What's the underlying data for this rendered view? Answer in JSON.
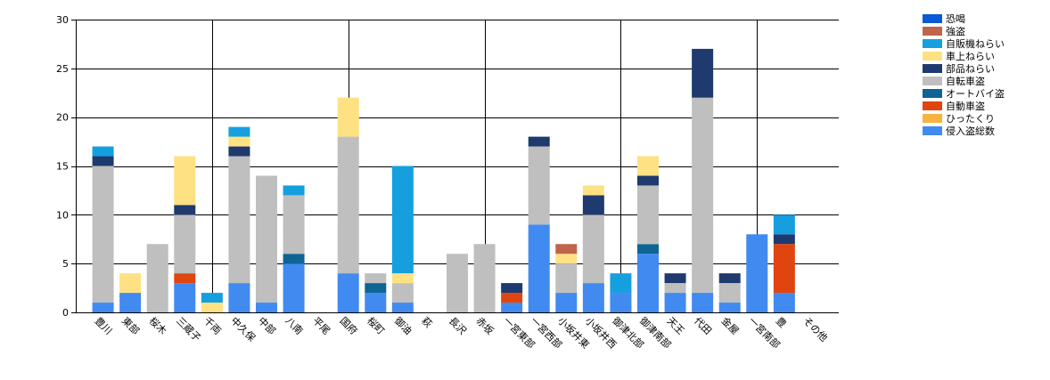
{
  "chart_data": {
    "type": "bar",
    "stacked": true,
    "title": "",
    "xlabel": "",
    "ylabel": "",
    "ylim": [
      0,
      30
    ],
    "yticks": [
      0,
      5,
      10,
      15,
      20,
      25,
      30
    ],
    "grid": true,
    "legend_position": "top-right",
    "categories": [
      "豊川",
      "東部",
      "桜木",
      "三蔵子",
      "千両",
      "中久保",
      "中部",
      "八南",
      "平尾",
      "国府",
      "桜町",
      "御油",
      "萩",
      "長沢",
      "赤坂",
      "一宮東部",
      "一宮西部",
      "小坂井東",
      "小坂井西",
      "御津北部",
      "御津南部",
      "天王",
      "代田",
      "金屋",
      "一宮南部",
      "豊",
      "その他"
    ],
    "series": [
      {
        "name": "恐喝",
        "color": "#0a5ad6",
        "values": [
          0,
          0,
          0,
          0,
          0,
          0,
          0,
          0,
          0,
          0,
          0,
          0,
          0,
          0,
          0,
          0,
          0,
          0,
          0,
          0,
          0,
          0,
          0,
          0,
          0,
          0,
          0
        ]
      },
      {
        "name": "強盗",
        "color": "#c0644b",
        "values": [
          0,
          0,
          0,
          0,
          0,
          0,
          0,
          0,
          0,
          0,
          0,
          0,
          0,
          0,
          0,
          0,
          0,
          1,
          0,
          0,
          0,
          0,
          0,
          0,
          0,
          0,
          0
        ]
      },
      {
        "name": "自販機ねらい",
        "color": "#159fdf",
        "values": [
          1,
          0,
          0,
          0,
          1,
          1,
          0,
          1,
          0,
          0,
          0,
          11,
          0,
          0,
          0,
          0,
          0,
          0,
          0,
          2,
          0,
          0,
          0,
          0,
          0,
          2,
          0
        ]
      },
      {
        "name": "車上ねらい",
        "color": "#fee182",
        "values": [
          0,
          2,
          0,
          5,
          1,
          1,
          0,
          0,
          0,
          4,
          0,
          1,
          0,
          0,
          0,
          0,
          0,
          1,
          1,
          0,
          2,
          0,
          0,
          0,
          0,
          0,
          0
        ]
      },
      {
        "name": "部品ねらい",
        "color": "#1e3a6e",
        "values": [
          1,
          0,
          0,
          1,
          0,
          1,
          0,
          0,
          0,
          0,
          0,
          0,
          0,
          0,
          0,
          1,
          1,
          0,
          2,
          0,
          1,
          1,
          5,
          1,
          0,
          1,
          0
        ]
      },
      {
        "name": "自転車盗",
        "color": "#bfbfbf",
        "values": [
          14,
          0,
          7,
          6,
          0,
          13,
          13,
          6,
          0,
          14,
          1,
          2,
          0,
          6,
          7,
          0,
          8,
          3,
          7,
          0,
          6,
          1,
          20,
          2,
          0,
          0,
          0
        ]
      },
      {
        "name": "オートバイ盗",
        "color": "#0e6493",
        "values": [
          0,
          0,
          0,
          0,
          0,
          0,
          0,
          1,
          0,
          0,
          1,
          0,
          0,
          0,
          0,
          0,
          0,
          0,
          0,
          0,
          1,
          0,
          0,
          0,
          0,
          0,
          0
        ]
      },
      {
        "name": "自動車盗",
        "color": "#e0450f",
        "values": [
          0,
          0,
          0,
          1,
          0,
          0,
          0,
          0,
          0,
          0,
          0,
          0,
          0,
          0,
          0,
          1,
          0,
          0,
          0,
          0,
          0,
          0,
          0,
          0,
          0,
          5,
          0
        ]
      },
      {
        "name": "ひったくり",
        "color": "#f6b33f",
        "values": [
          0,
          0,
          0,
          0,
          0,
          0,
          0,
          0,
          0,
          0,
          0,
          0,
          0,
          0,
          0,
          0,
          0,
          0,
          0,
          0,
          0,
          0,
          0,
          0,
          0,
          0,
          0
        ]
      },
      {
        "name": "侵入盗総数",
        "color": "#418af0",
        "values": [
          1,
          2,
          0,
          3,
          0,
          3,
          1,
          5,
          0,
          4,
          2,
          1,
          0,
          0,
          0,
          1,
          9,
          2,
          3,
          2,
          6,
          2,
          2,
          1,
          8,
          2,
          0
        ]
      }
    ]
  }
}
